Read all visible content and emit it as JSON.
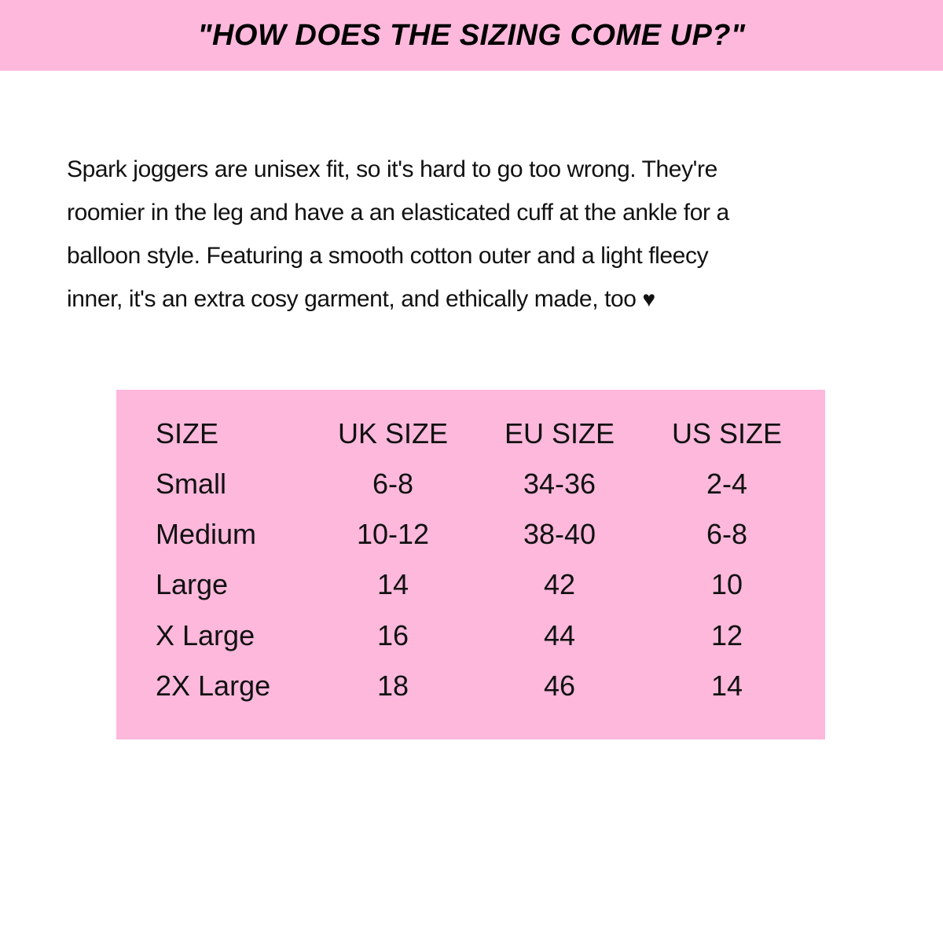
{
  "header": {
    "title": "\"HOW DOES THE SIZING COME UP?\""
  },
  "intro": {
    "lines": [
      "Spark joggers are unisex fit, so it's hard to go too wrong. They're",
      "roomier in the leg and have a an elasticated cuff at the ankle for a",
      "balloon style. Featuring a smooth cotton outer and a light fleecy",
      "inner, it's an extra cosy garment, and ethically made, too"
    ],
    "heart": "♥"
  },
  "size_table": {
    "headers": [
      "SIZE",
      "UK SIZE",
      "EU SIZE",
      "US SIZE"
    ],
    "rows": [
      [
        "Small",
        "6-8",
        "34-36",
        "2-4"
      ],
      [
        "Medium",
        "10-12",
        "38-40",
        "6-8"
      ],
      [
        "Large",
        "14",
        "42",
        "10"
      ],
      [
        "X Large",
        "16",
        "44",
        "12"
      ],
      [
        "2X Large",
        "18",
        "46",
        "14"
      ]
    ]
  },
  "colors": {
    "accent_pink": "#fdb8dc",
    "text": "#111111"
  }
}
